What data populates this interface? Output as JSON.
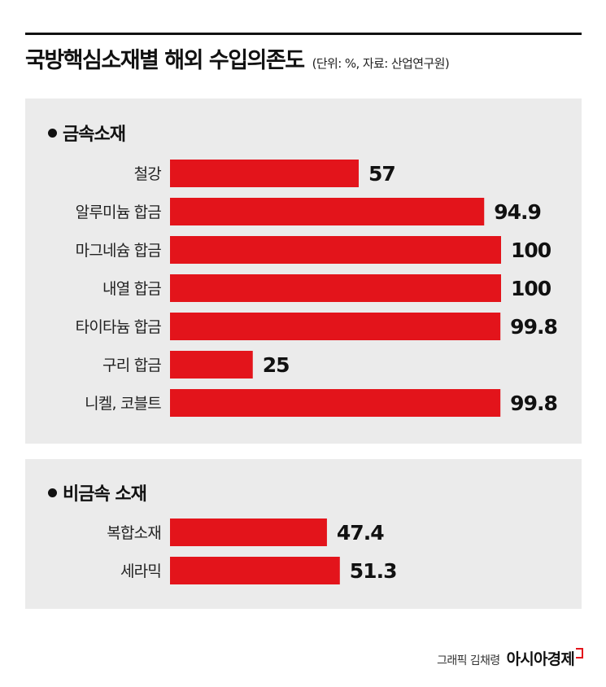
{
  "header": {
    "title": "국방핵심소재별 해외 수입의존도",
    "subtitle": "(단위: %, 자료: 산업연구원)"
  },
  "footer": {
    "credit": "그래픽 김채령",
    "brand": "아시아경제"
  },
  "colors": {
    "bar": "#e3141b",
    "panel": "#ebebeb",
    "text": "#111111"
  },
  "chart_data": [
    {
      "type": "bar",
      "orientation": "horizontal",
      "title": "● 금속소재",
      "categories": [
        "철강",
        "알루미늄 합금",
        "마그네슘 합금",
        "내열 합금",
        "타이타늄 합금",
        "구리 합금",
        "니켈, 코블트"
      ],
      "values": [
        57,
        94.9,
        100,
        100,
        99.8,
        25,
        99.8
      ],
      "value_labels": [
        "57",
        "94.9",
        "100",
        "100",
        "99.8",
        "25",
        "99.8"
      ],
      "xlim": [
        0,
        100
      ],
      "grid": false
    },
    {
      "type": "bar",
      "orientation": "horizontal",
      "title": "● 비금속 소재",
      "categories": [
        "복합소재",
        "세라믹"
      ],
      "values": [
        47.4,
        51.3
      ],
      "value_labels": [
        "47.4",
        "51.3"
      ],
      "xlim": [
        0,
        100
      ],
      "grid": false
    }
  ]
}
